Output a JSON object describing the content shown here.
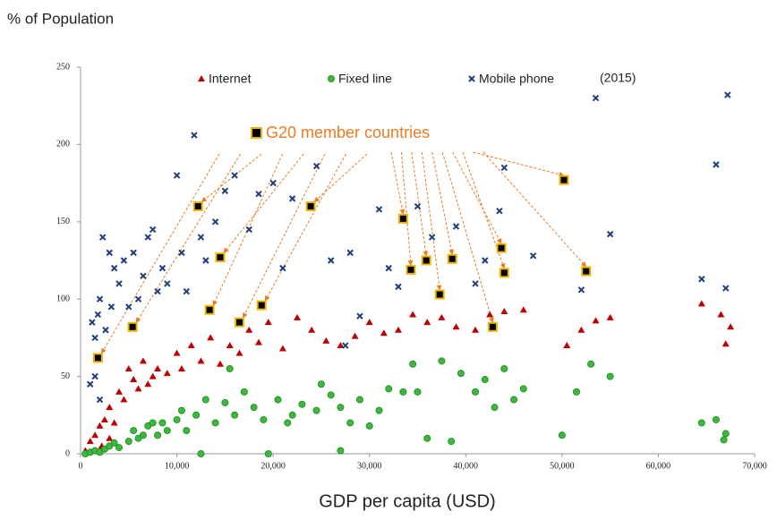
{
  "chart_data": {
    "type": "scatter",
    "ylabel": "% of Population",
    "xlabel": "GDP per capita (USD)",
    "annotations": [
      "(2015)"
    ],
    "xlim": [
      0,
      70000
    ],
    "ylim": [
      0,
      250
    ],
    "xticks": [
      0,
      {
        "value": 10000,
        "label": "10,000"
      },
      {
        "value": 20000,
        "label": "20,000"
      },
      {
        "value": 30000,
        "label": "30,000"
      },
      {
        "value": 40000,
        "label": "40,000"
      },
      {
        "value": 50000,
        "label": "50,000"
      },
      {
        "value": 60000,
        "label": "60,000"
      },
      {
        "value": 70000,
        "label": "70,000"
      }
    ],
    "yticks": [
      0,
      50,
      100,
      150,
      200,
      250
    ],
    "series": [
      {
        "name": "Internet",
        "marker": "triangle",
        "color": "#c00000",
        "x": [
          500,
          1000,
          1500,
          2000,
          2500,
          3000,
          3500,
          4000,
          4500,
          5000,
          5500,
          6000,
          6500,
          7000,
          7500,
          8000,
          9000,
          10000,
          10500,
          11500,
          12500,
          13500,
          14500,
          15500,
          16500,
          17500,
          18500,
          19500,
          21000,
          22500,
          24000,
          25500,
          27000,
          28500,
          30000,
          31500,
          33000,
          34500,
          36000,
          37500,
          39000,
          41000,
          42500,
          44000,
          46000,
          50500,
          52000,
          53500,
          55000,
          64500,
          66500,
          67000,
          67500,
          2200,
          3000
        ],
        "values": [
          2,
          8,
          12,
          18,
          22,
          30,
          20,
          40,
          35,
          55,
          48,
          42,
          60,
          45,
          50,
          55,
          52,
          65,
          55,
          70,
          60,
          75,
          58,
          70,
          65,
          80,
          72,
          85,
          68,
          88,
          80,
          73,
          70,
          76,
          85,
          78,
          80,
          90,
          85,
          88,
          82,
          80,
          90,
          92,
          93,
          70,
          80,
          86,
          88,
          97,
          90,
          71,
          82,
          5,
          10
        ]
      },
      {
        "name": "Fixed line",
        "marker": "circle",
        "color": "#3cb83c",
        "x": [
          500,
          1000,
          1500,
          2000,
          2500,
          3000,
          3500,
          4000,
          5000,
          5500,
          6000,
          6500,
          7000,
          7500,
          8000,
          8500,
          9000,
          10000,
          10500,
          11000,
          12000,
          13000,
          14000,
          15000,
          15500,
          16000,
          17000,
          18000,
          19000,
          19500,
          20500,
          21500,
          22000,
          23000,
          24500,
          25000,
          26000,
          27000,
          28000,
          29000,
          30000,
          31000,
          32000,
          33500,
          34500,
          35000,
          36000,
          37500,
          38500,
          39500,
          41000,
          42000,
          43000,
          44000,
          45000,
          46000,
          50000,
          51500,
          53000,
          55000,
          64500,
          66000,
          66800,
          67000,
          12500,
          27000
        ],
        "values": [
          0,
          1,
          2,
          1,
          3,
          5,
          7,
          4,
          8,
          15,
          10,
          12,
          18,
          20,
          12,
          20,
          15,
          22,
          28,
          15,
          25,
          35,
          20,
          33,
          55,
          25,
          40,
          30,
          22,
          0,
          35,
          20,
          25,
          32,
          28,
          45,
          38,
          30,
          20,
          35,
          18,
          28,
          42,
          40,
          58,
          40,
          10,
          60,
          8,
          52,
          40,
          48,
          30,
          55,
          35,
          42,
          12,
          40,
          58,
          50,
          20,
          22,
          9,
          13,
          0,
          2
        ]
      },
      {
        "name": "Mobile phone",
        "marker": "cross",
        "color": "#1f3f7a",
        "x": [
          1000,
          1200,
          1500,
          1800,
          2000,
          2300,
          2600,
          3000,
          3200,
          3500,
          4000,
          4500,
          5000,
          5500,
          6000,
          6500,
          7000,
          7500,
          8000,
          8500,
          9000,
          10000,
          10500,
          11000,
          11800,
          12500,
          13000,
          14000,
          15000,
          16000,
          17500,
          18500,
          20000,
          21000,
          22000,
          24500,
          26000,
          28000,
          31000,
          32000,
          33000,
          35000,
          36500,
          39000,
          41000,
          42000,
          43500,
          44000,
          47000,
          52000,
          53500,
          55000,
          64500,
          66000,
          67000,
          67200,
          2000,
          1500,
          29000,
          27500
        ],
        "values": [
          45,
          85,
          75,
          90,
          100,
          140,
          80,
          130,
          95,
          120,
          110,
          125,
          95,
          130,
          100,
          115,
          140,
          145,
          105,
          120,
          110,
          180,
          130,
          105,
          206,
          140,
          125,
          150,
          170,
          180,
          145,
          168,
          175,
          120,
          165,
          186,
          125,
          130,
          158,
          120,
          108,
          160,
          140,
          147,
          110,
          125,
          157,
          185,
          128,
          106,
          230,
          142,
          113,
          187,
          107,
          232,
          35,
          50,
          89,
          70
        ]
      },
      {
        "name": "G20 member countries",
        "marker": "square",
        "color": "#000000",
        "x": [
          1800,
          5400,
          12200,
          13400,
          14500,
          16500,
          18800,
          23900,
          33500,
          34300,
          35900,
          37300,
          38600,
          42800,
          43700,
          44000,
          50200,
          52500
        ],
        "values": [
          62,
          82,
          160,
          93,
          127,
          85,
          96,
          160,
          152,
          119,
          125,
          103,
          126,
          82,
          133,
          117,
          177,
          118
        ]
      }
    ]
  }
}
